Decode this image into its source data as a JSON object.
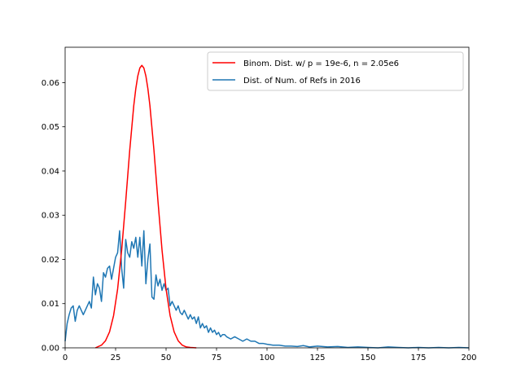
{
  "chart_data": {
    "type": "line",
    "title": "",
    "xlabel": "",
    "ylabel": "",
    "xlim": [
      0,
      200
    ],
    "ylim": [
      0,
      0.068
    ],
    "x_ticks": [
      0,
      25,
      50,
      75,
      100,
      125,
      150,
      175,
      200
    ],
    "x_tick_labels": [
      "0",
      "25",
      "50",
      "75",
      "100",
      "125",
      "150",
      "175",
      "200"
    ],
    "y_ticks": [
      0,
      0.01,
      0.02,
      0.03,
      0.04,
      0.05,
      0.06
    ],
    "y_tick_labels": [
      "0.00",
      "0.01",
      "0.02",
      "0.03",
      "0.04",
      "0.05",
      "0.06"
    ],
    "grid": false,
    "legend_position": "top-right",
    "series": [
      {
        "name": "Binom. Dist. w/ p = 19e-6, n = 2.05e6",
        "color": "#ff0000",
        "style": "curve",
        "x": [
          15,
          18,
          20,
          22,
          24,
          26,
          28,
          30,
          32,
          34,
          35,
          36,
          37,
          38,
          39,
          40,
          41,
          42,
          44,
          46,
          48,
          50,
          52,
          54,
          56,
          58,
          60,
          62,
          65
        ],
        "y": [
          0.0,
          0.0006,
          0.0016,
          0.0036,
          0.0073,
          0.0133,
          0.0221,
          0.0331,
          0.0447,
          0.0548,
          0.0586,
          0.0615,
          0.0633,
          0.0639,
          0.0633,
          0.0615,
          0.0586,
          0.0548,
          0.0447,
          0.0331,
          0.0221,
          0.0133,
          0.0073,
          0.0036,
          0.0016,
          0.0006,
          0.0002,
          0.0001,
          0.0
        ]
      },
      {
        "name": "Dist. of Num. of Refs in 2016",
        "color": "#1f77b4",
        "style": "line",
        "x": [
          0,
          1,
          2,
          3,
          4,
          5,
          6,
          7,
          8,
          9,
          10,
          11,
          12,
          13,
          14,
          15,
          16,
          17,
          18,
          19,
          20,
          21,
          22,
          23,
          24,
          25,
          26,
          27,
          28,
          29,
          30,
          31,
          32,
          33,
          34,
          35,
          36,
          37,
          38,
          39,
          40,
          41,
          42,
          43,
          44,
          45,
          46,
          47,
          48,
          49,
          50,
          51,
          52,
          53,
          54,
          55,
          56,
          57,
          58,
          59,
          60,
          61,
          62,
          63,
          64,
          65,
          66,
          67,
          68,
          69,
          70,
          71,
          72,
          73,
          74,
          75,
          76,
          77,
          78,
          79,
          80,
          82,
          84,
          86,
          88,
          90,
          92,
          94,
          96,
          98,
          100,
          103,
          106,
          109,
          112,
          115,
          118,
          121,
          125,
          130,
          135,
          140,
          145,
          150,
          155,
          160,
          165,
          170,
          175,
          180,
          185,
          190,
          195,
          200
        ],
        "y": [
          0.0015,
          0.0055,
          0.0075,
          0.009,
          0.0095,
          0.006,
          0.0085,
          0.0095,
          0.0085,
          0.0075,
          0.0085,
          0.0095,
          0.0105,
          0.009,
          0.016,
          0.012,
          0.0145,
          0.0135,
          0.0105,
          0.017,
          0.016,
          0.018,
          0.0185,
          0.0155,
          0.018,
          0.0205,
          0.0215,
          0.0265,
          0.018,
          0.0135,
          0.0245,
          0.0215,
          0.0205,
          0.024,
          0.0225,
          0.025,
          0.0205,
          0.025,
          0.0185,
          0.0265,
          0.0145,
          0.02,
          0.0235,
          0.0115,
          0.011,
          0.0165,
          0.014,
          0.0155,
          0.013,
          0.0145,
          0.013,
          0.0135,
          0.0095,
          0.0105,
          0.0095,
          0.0085,
          0.0095,
          0.008,
          0.0075,
          0.0085,
          0.0075,
          0.0065,
          0.0075,
          0.0065,
          0.007,
          0.0055,
          0.007,
          0.0045,
          0.0055,
          0.0045,
          0.005,
          0.0035,
          0.0045,
          0.0035,
          0.004,
          0.003,
          0.0035,
          0.0025,
          0.003,
          0.003,
          0.0025,
          0.002,
          0.0025,
          0.002,
          0.0015,
          0.002,
          0.0015,
          0.0015,
          0.001,
          0.001,
          0.0008,
          0.0006,
          0.0006,
          0.0004,
          0.0004,
          0.0003,
          0.0005,
          0.0002,
          0.0004,
          0.0002,
          0.0003,
          0.0001,
          0.0002,
          0.0001,
          0.0,
          0.0002,
          0.0001,
          0.0,
          0.0001,
          0.0,
          0.0001,
          0.0,
          0.0001,
          0.0
        ]
      }
    ]
  }
}
